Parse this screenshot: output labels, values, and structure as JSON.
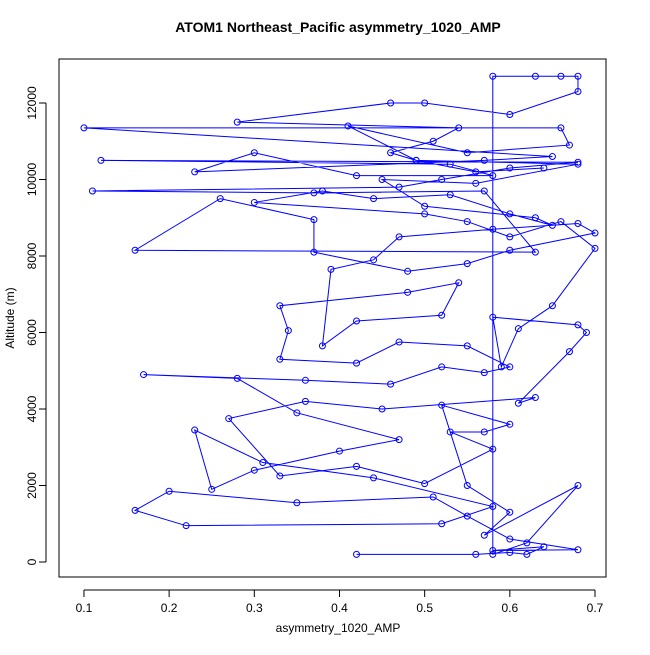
{
  "chart_data": {
    "type": "line",
    "title": "ATOM1 Northeast_Pacific asymmetry_1020_AMP",
    "x_label": "asymmetry_1020_AMP",
    "y_label": "Altitude (m)",
    "color": "#0000ff",
    "markers": "open-circle",
    "xlim": [
      0.0707,
      0.7129
    ],
    "ylim": [
      -392,
      13150
    ],
    "xticks": [
      0.1,
      0.2,
      0.3,
      0.4,
      0.5,
      0.6,
      0.7
    ],
    "yticks": [
      0,
      2000,
      4000,
      6000,
      8000,
      10000,
      12000
    ],
    "x": [
      0.42,
      0.56,
      0.6,
      0.62,
      0.64,
      0.58,
      0.68,
      0.6,
      0.55,
      0.51,
      0.35,
      0.2,
      0.16,
      0.22,
      0.52,
      0.58,
      0.44,
      0.31,
      0.23,
      0.25,
      0.3,
      0.4,
      0.47,
      0.35,
      0.28,
      0.17,
      0.36,
      0.46,
      0.52,
      0.57,
      0.6,
      0.55,
      0.47,
      0.42,
      0.33,
      0.34,
      0.33,
      0.48,
      0.54,
      0.52,
      0.42,
      0.38,
      0.39,
      0.44,
      0.47,
      0.58,
      0.68,
      0.7,
      0.6,
      0.55,
      0.48,
      0.37,
      0.37,
      0.26,
      0.16,
      0.63,
      0.57,
      0.37,
      0.11,
      0.47,
      0.52,
      0.6,
      0.68,
      0.12,
      0.53,
      0.58,
      0.42,
      0.3,
      0.23,
      0.57,
      0.65,
      0.1,
      0.66,
      0.67,
      0.55,
      0.41,
      0.49,
      0.68,
      0.56,
      0.45,
      0.5,
      0.63,
      0.65,
      0.6,
      0.53,
      0.44,
      0.38,
      0.3,
      0.5,
      0.55,
      0.6,
      0.66,
      0.7,
      0.65,
      0.61,
      0.59,
      0.58,
      0.68,
      0.69,
      0.67,
      0.61,
      0.63,
      0.45,
      0.36,
      0.27,
      0.33,
      0.42,
      0.5,
      0.58,
      0.53,
      0.57,
      0.6,
      0.52,
      0.55,
      0.6,
      0.57,
      0.68,
      0.62,
      0.58,
      0.58,
      0.63,
      0.66,
      0.68,
      0.68,
      0.6,
      0.5,
      0.46,
      0.28,
      0.54,
      0.51,
      0.46,
      0.49,
      0.56,
      0.64
    ],
    "values": [
      200,
      200,
      250,
      200,
      400,
      300,
      320,
      600,
      1200,
      1700,
      1550,
      1850,
      1350,
      950,
      1000,
      1450,
      2200,
      2600,
      3450,
      1900,
      2400,
      2900,
      3200,
      3900,
      4800,
      4900,
      4750,
      4650,
      5100,
      4950,
      5100,
      5650,
      5750,
      5200,
      5300,
      6050,
      6700,
      7050,
      7300,
      6450,
      6300,
      5650,
      7650,
      7900,
      8500,
      8700,
      8850,
      8600,
      8150,
      7800,
      7600,
      8100,
      8950,
      9500,
      8150,
      8100,
      9700,
      9650,
      9700,
      9800,
      10000,
      10300,
      10450,
      10500,
      10400,
      10100,
      10100,
      10700,
      10200,
      10500,
      10600,
      11350,
      11350,
      10900,
      10700,
      11400,
      10500,
      10400,
      9900,
      10000,
      9300,
      9000,
      8800,
      9100,
      9600,
      9500,
      9700,
      9400,
      9100,
      8900,
      8500,
      8900,
      8200,
      6700,
      6100,
      5100,
      6400,
      6200,
      6000,
      5500,
      4150,
      4300,
      4000,
      4200,
      3750,
      2250,
      2500,
      2050,
      2950,
      3400,
      3400,
      3600,
      4100,
      2000,
      1300,
      700,
      2000,
      500,
      200,
      12700,
      12700,
      12700,
      12700,
      12300,
      11700,
      12000,
      12000,
      11500,
      11350,
      11000,
      10700,
      10500,
      10200,
      10300
    ]
  }
}
